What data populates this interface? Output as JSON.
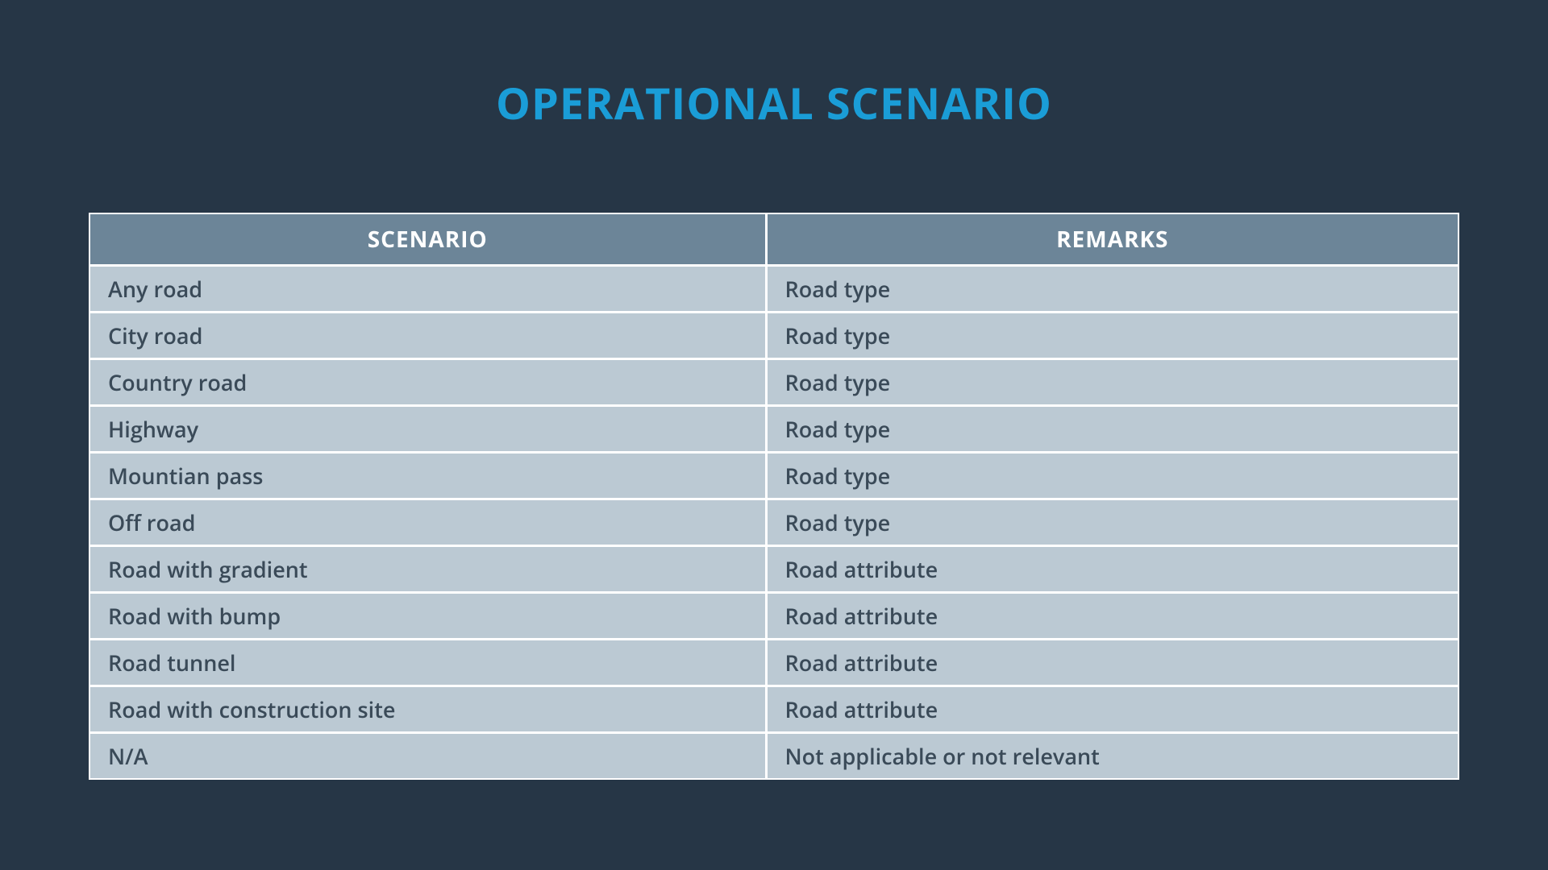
{
  "title": "OPERATIONAL SCENARIO",
  "table": {
    "columns": [
      "SCENARIO",
      "REMARKS"
    ],
    "rows": [
      [
        "Any road",
        "Road type"
      ],
      [
        "City road",
        "Road type"
      ],
      [
        "Country road",
        "Road type"
      ],
      [
        "Highway",
        "Road type"
      ],
      [
        "Mountian pass",
        "Road type"
      ],
      [
        "Off road",
        "Road type"
      ],
      [
        "Road with gradient",
        "Road attribute"
      ],
      [
        "Road with bump",
        "Road attribute"
      ],
      [
        "Road tunnel",
        "Road attribute"
      ],
      [
        "Road with construction site",
        "Road attribute"
      ],
      [
        "N/A",
        "Not applicable or not relevant"
      ]
    ],
    "header_bg_color": "#6c8598",
    "header_text_color": "#ffffff",
    "cell_bg_color": "#bbc9d3",
    "cell_text_color": "#3a4a58",
    "border_color": "#ffffff",
    "header_fontsize": 28,
    "cell_fontsize": 27
  },
  "background_color": "#263646",
  "title_color": "#1a9dd7",
  "title_fontsize": 54
}
